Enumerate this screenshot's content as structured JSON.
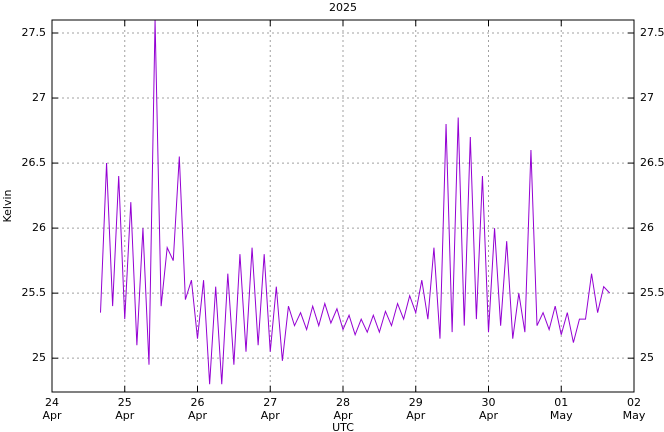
{
  "chart_data": {
    "type": "line",
    "title": "2025",
    "x_label": "UTC",
    "y_label": "Kelvin",
    "x": [
      "2025-04-24 16:00",
      "2025-04-24 18:00",
      "2025-04-24 20:00",
      "2025-04-24 22:00",
      "2025-04-25 00:00",
      "2025-04-25 02:00",
      "2025-04-25 04:00",
      "2025-04-25 06:00",
      "2025-04-25 08:00",
      "2025-04-25 10:00",
      "2025-04-25 12:00",
      "2025-04-25 14:00",
      "2025-04-25 16:00",
      "2025-04-25 18:00",
      "2025-04-25 20:00",
      "2025-04-25 22:00",
      "2025-04-26 00:00",
      "2025-04-26 02:00",
      "2025-04-26 04:00",
      "2025-04-26 06:00",
      "2025-04-26 08:00",
      "2025-04-26 10:00",
      "2025-04-26 12:00",
      "2025-04-26 14:00",
      "2025-04-26 16:00",
      "2025-04-26 18:00",
      "2025-04-26 20:00",
      "2025-04-26 22:00",
      "2025-04-27 00:00",
      "2025-04-27 02:00",
      "2025-04-27 04:00",
      "2025-04-27 06:00",
      "2025-04-27 08:00",
      "2025-04-27 10:00",
      "2025-04-27 12:00",
      "2025-04-27 14:00",
      "2025-04-27 16:00",
      "2025-04-27 18:00",
      "2025-04-27 20:00",
      "2025-04-27 22:00",
      "2025-04-28 00:00",
      "2025-04-28 02:00",
      "2025-04-28 04:00",
      "2025-04-28 06:00",
      "2025-04-28 08:00",
      "2025-04-28 10:00",
      "2025-04-28 12:00",
      "2025-04-28 14:00",
      "2025-04-28 16:00",
      "2025-04-28 18:00",
      "2025-04-28 20:00",
      "2025-04-28 22:00",
      "2025-04-29 00:00",
      "2025-04-29 02:00",
      "2025-04-29 04:00",
      "2025-04-29 06:00",
      "2025-04-29 08:00",
      "2025-04-29 10:00",
      "2025-04-29 12:00",
      "2025-04-29 14:00",
      "2025-04-29 16:00",
      "2025-04-29 18:00",
      "2025-04-29 20:00",
      "2025-04-29 22:00",
      "2025-04-30 00:00",
      "2025-04-30 02:00",
      "2025-04-30 04:00",
      "2025-04-30 06:00",
      "2025-04-30 08:00",
      "2025-04-30 10:00",
      "2025-04-30 12:00",
      "2025-04-30 14:00",
      "2025-04-30 16:00",
      "2025-04-30 18:00",
      "2025-04-30 20:00",
      "2025-04-30 22:00",
      "2025-05-01 00:00",
      "2025-05-01 02:00",
      "2025-05-01 04:00",
      "2025-05-01 06:00",
      "2025-05-01 08:00",
      "2025-05-01 10:00",
      "2025-05-01 12:00",
      "2025-05-01 14:00",
      "2025-05-01 16:00"
    ],
    "values": [
      25.35,
      26.5,
      25.4,
      26.4,
      25.3,
      26.2,
      25.1,
      26.0,
      24.95,
      27.6,
      25.4,
      25.85,
      25.75,
      26.55,
      25.45,
      25.6,
      25.15,
      25.6,
      24.8,
      25.55,
      24.8,
      25.65,
      24.95,
      25.8,
      25.05,
      25.85,
      25.1,
      25.8,
      25.05,
      25.55,
      24.98,
      25.4,
      25.25,
      25.35,
      25.22,
      25.4,
      25.25,
      25.42,
      25.27,
      25.38,
      25.22,
      25.33,
      25.18,
      25.3,
      25.2,
      25.33,
      25.2,
      25.36,
      25.25,
      25.42,
      25.3,
      25.48,
      25.35,
      25.6,
      25.3,
      25.85,
      25.15,
      26.8,
      25.2,
      26.85,
      25.25,
      26.7,
      25.3,
      26.4,
      25.2,
      26.0,
      25.25,
      25.9,
      25.15,
      25.5,
      25.2,
      26.6,
      25.25,
      25.35,
      25.22,
      25.4,
      25.18,
      25.35,
      25.12,
      25.3,
      25.3,
      25.65,
      25.35,
      25.55,
      25.5
    ],
    "color": "#9400d3",
    "xlim": [
      "2025-04-24 00:00",
      "2025-05-02 00:00"
    ],
    "xticks": [
      {
        "value": "2025-04-24 00:00",
        "label": "24 Apr"
      },
      {
        "value": "2025-04-25 00:00",
        "label": "25 Apr"
      },
      {
        "value": "2025-04-26 00:00",
        "label": "26 Apr"
      },
      {
        "value": "2025-04-27 00:00",
        "label": "27 Apr"
      },
      {
        "value": "2025-04-28 00:00",
        "label": "28 Apr"
      },
      {
        "value": "2025-04-29 00:00",
        "label": "29 Apr"
      },
      {
        "value": "2025-04-30 00:00",
        "label": "30 Apr"
      },
      {
        "value": "2025-05-01 00:00",
        "label": "01 May"
      },
      {
        "value": "2025-05-02 00:00",
        "label": "02 May"
      }
    ],
    "ylim": [
      24.74,
      27.6
    ],
    "yticks": [
      25,
      25.5,
      26,
      26.5,
      27,
      27.5
    ],
    "grid": true
  }
}
